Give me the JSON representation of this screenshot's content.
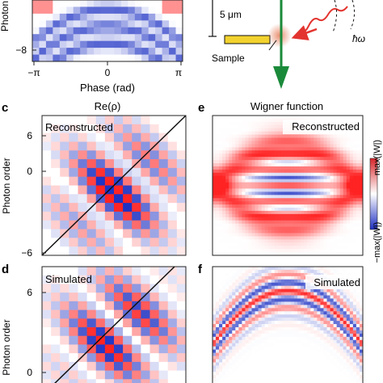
{
  "panels": {
    "top_left": {
      "y_axis_label": "Photon",
      "y_tick": "−8",
      "x_ticks": [
        "−π",
        "0",
        "π"
      ],
      "x_axis_label": "Phase (rad)"
    },
    "top_right": {
      "scale_bar_label": "5 μm",
      "sample_label": "Sample",
      "photon_label": "ħω"
    },
    "c": {
      "letter": "c",
      "title": "Re(ρ)",
      "inset_label": "Reconstructed",
      "y_axis_label": "Photon order",
      "y_ticks": [
        "6",
        "0",
        "−6"
      ]
    },
    "e": {
      "letter": "e",
      "title": "Wigner function",
      "inset_label": "Reconstructed",
      "colorbar_max": "max(|W|)",
      "colorbar_min": "−max(|W|)"
    },
    "d": {
      "letter": "d",
      "inset_label": "Simulated",
      "y_axis_label": "Photon order",
      "y_ticks": [
        "6",
        "0"
      ]
    },
    "f": {
      "letter": "f",
      "inset_label": "Simulated"
    }
  },
  "colors": {
    "red": "#e3342f",
    "blue": "#1f33c4",
    "green": "#1a8a3a",
    "sample_yellow": "#f2d22e",
    "glow": "#e88a6a"
  }
}
